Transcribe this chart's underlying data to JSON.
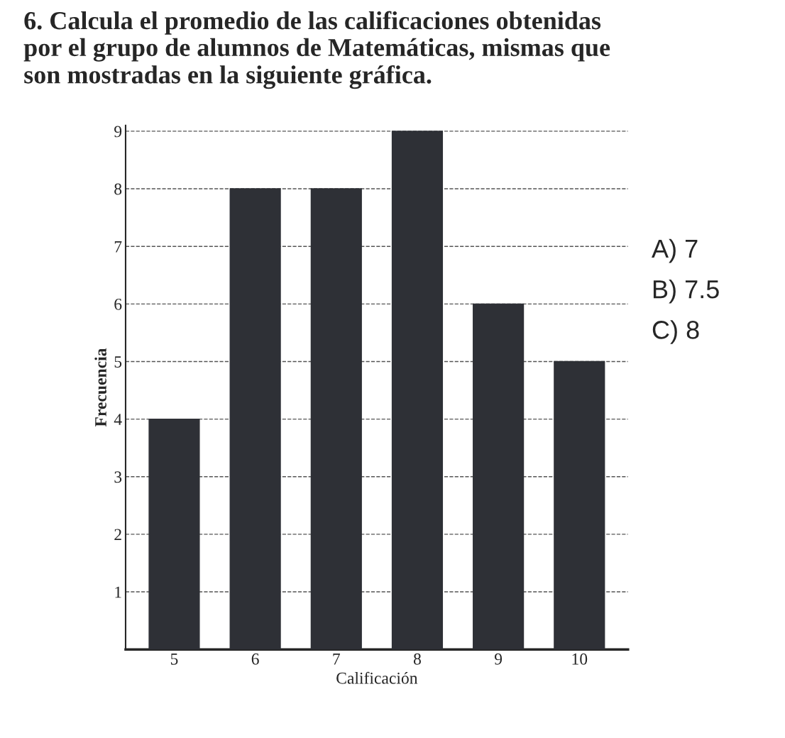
{
  "chart_data": {
    "type": "bar",
    "title": "6. Calcula el promedio de las calificaciones obtenidas por el grupo de alumnos de Matemáticas, mismas que son mostradas en la siguiente gráfica.",
    "categories": [
      "5",
      "6",
      "7",
      "8",
      "9",
      "10"
    ],
    "values": [
      4,
      8,
      8,
      9,
      6,
      5
    ],
    "color": "#2e3036",
    "xlabel": "Calificación",
    "ylabel": "Frecuencia",
    "ylim": [
      0,
      9.1
    ],
    "yticks": [
      1,
      2,
      3,
      4,
      5,
      6,
      7,
      8,
      9
    ],
    "grid": "y",
    "annotations": [
      "A) 7",
      "B) 7.5",
      "C) 8"
    ]
  }
}
